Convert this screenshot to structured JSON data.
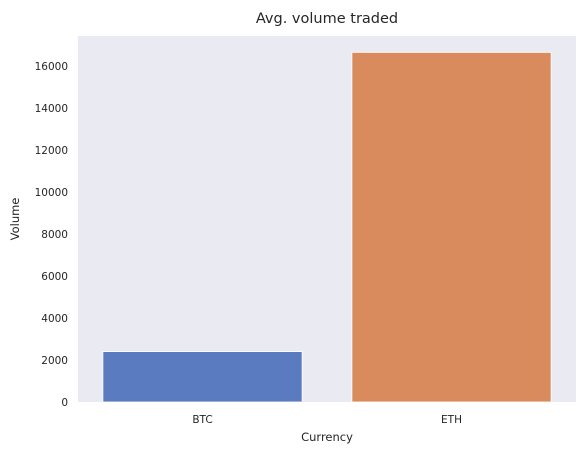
{
  "chart_data": {
    "type": "bar",
    "title": "Avg. volume traded",
    "xlabel": "Currency",
    "ylabel": "Volume",
    "categories": [
      "BTC",
      "ETH"
    ],
    "values": [
      2400,
      16650
    ],
    "colors": [
      "#5a7bbf",
      "#d98b5e"
    ],
    "ylim": [
      0,
      16000
    ],
    "yticks": [
      0,
      2000,
      4000,
      6000,
      8000,
      10000,
      12000,
      14000,
      16000
    ],
    "grid": false,
    "background": "#eaeaf2"
  }
}
